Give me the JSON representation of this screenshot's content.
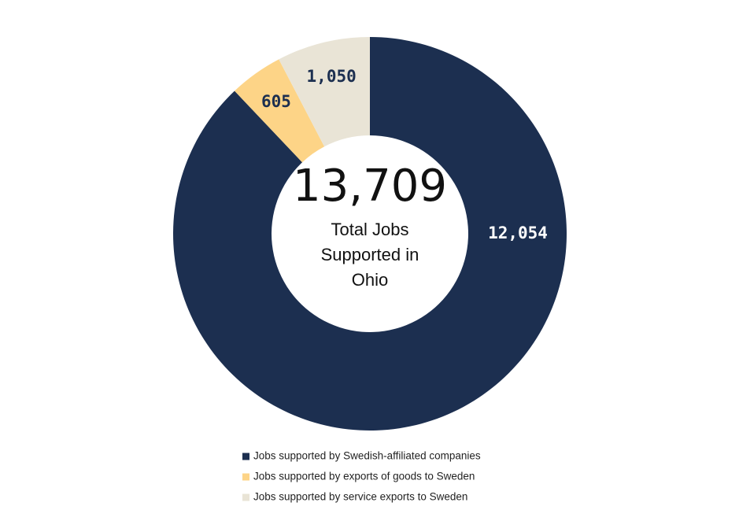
{
  "chart_data": {
    "type": "donut",
    "center_value": "13,709",
    "center_text": "Total Jobs Supported in Ohio",
    "categories": [
      "Jobs supported by Swedish-affiliated companies",
      "Jobs supported by exports of goods to Sweden",
      "Jobs supported by service exports to Sweden"
    ],
    "values": [
      12054,
      605,
      1050
    ],
    "value_labels": [
      "12,054",
      "605",
      "1,050"
    ],
    "colors": [
      "#1c2f50",
      "#fdd487",
      "#e9e4d6"
    ],
    "legend": "bottom"
  }
}
